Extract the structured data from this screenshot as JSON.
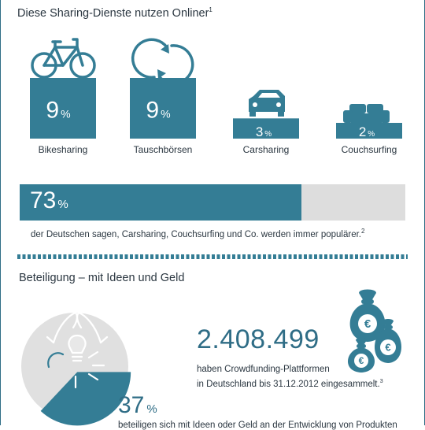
{
  "header": {
    "title": "Diese Sharing-Dienste nutzen Onliner",
    "title_sup": "1"
  },
  "chart_data": [
    {
      "type": "bar",
      "categories": [
        "Bikesharing",
        "Tauschbörsen",
        "Carsharing",
        "Couchsurfing"
      ],
      "values": [
        9,
        9,
        3,
        2
      ],
      "value_labels": [
        "9",
        "9",
        "3",
        "2"
      ],
      "unit": "%",
      "ylim": [
        0,
        9
      ],
      "icons": [
        "bicycle-icon",
        "exchange-arrows-icon",
        "car-icon",
        "couch-icon"
      ],
      "color": "#347d95"
    },
    {
      "type": "bar",
      "orientation": "horizontal",
      "values": [
        73
      ],
      "value_label": "73",
      "unit": "%",
      "xlim": [
        0,
        100
      ],
      "note": "der Deutschen sagen, Carsharing, Couchsurfing und Co. werden immer populärer.",
      "note_sup": "2",
      "colors": {
        "fill": "#347d95",
        "track": "#dddddd"
      }
    },
    {
      "type": "pie",
      "values": [
        37,
        63
      ],
      "value_label": "37",
      "unit": "%",
      "colors": [
        "#347d95",
        "#e0e0e0"
      ],
      "icon": "hands-lightbulb-icon"
    }
  ],
  "section2": {
    "title": "Beteiligung – mit Ideen und Geld"
  },
  "crowdfunding": {
    "amount": "2.408.499",
    "line1": "haben Crowdfunding-Plattformen",
    "line2": "in Deutschland bis 31.12.2012 eingesammelt.",
    "sup": "3",
    "icon": "euro-money-bags-icon"
  },
  "cut_text": "beteiligen sich mit Ideen oder Geld an der Entwicklung von Produkten"
}
